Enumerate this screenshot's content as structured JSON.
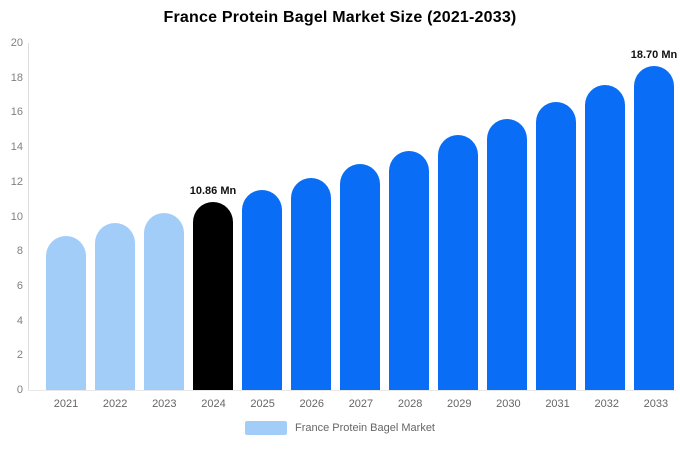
{
  "chart": {
    "title": "France Protein Bagel Market Size (2021-2033)",
    "legend": {
      "label": "France Protein Bagel Market",
      "swatch_color": "#A3CDF9"
    }
  },
  "chart_data": {
    "type": "bar",
    "title": "France Protein Bagel Market Size (2021-2033)",
    "unit": "Mn",
    "categories": [
      "2021",
      "2022",
      "2023",
      "2024",
      "2025",
      "2026",
      "2027",
      "2028",
      "2029",
      "2030",
      "2031",
      "2032",
      "2033"
    ],
    "values": [
      8.9,
      9.6,
      10.2,
      10.86,
      11.5,
      12.2,
      13.0,
      13.8,
      14.7,
      15.6,
      16.6,
      17.6,
      18.7
    ],
    "bar_colors": [
      "#A3CDF9",
      "#A3CDF9",
      "#A3CDF9",
      "#000000",
      "#0A6DF5",
      "#0A6DF5",
      "#0A6DF5",
      "#0A6DF5",
      "#0A6DF5",
      "#0A6DF5",
      "#0A6DF5",
      "#0A6DF5",
      "#0A6DF5"
    ],
    "data_labels": [
      {
        "category": "2024",
        "text": "10.86 Mn"
      },
      {
        "category": "2033",
        "text": "18.70 Mn"
      }
    ],
    "xlabel": "",
    "ylabel": "",
    "ylim": [
      0,
      20
    ],
    "yticks": [
      0,
      2,
      4,
      6,
      8,
      10,
      12,
      14,
      16,
      18,
      20
    ],
    "grid": false,
    "legend_position": "bottom-center",
    "colors": {
      "historical": "#A3CDF9",
      "base_year": "#000000",
      "forecast": "#0A6DF5",
      "axis": "#DDDDDD"
    }
  }
}
